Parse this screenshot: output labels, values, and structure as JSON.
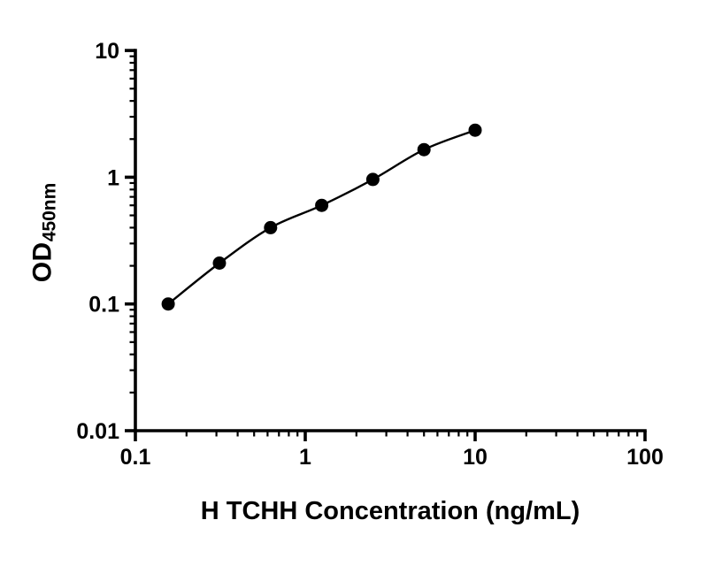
{
  "figure": {
    "background_color": "#ffffff",
    "axis_color": "#000000"
  },
  "chart_data": {
    "type": "scatter",
    "title": "",
    "xlabel": "H TCHH Concentration (ng/mL)",
    "ylabel": "OD",
    "ylabel_subscript": "450nm",
    "x": [
      0.156,
      0.3125,
      0.625,
      1.25,
      2.5,
      5,
      10
    ],
    "y": [
      0.1,
      0.21,
      0.4,
      0.6,
      0.96,
      1.65,
      2.35
    ],
    "x_scale": "log",
    "y_scale": "log",
    "xlim": [
      0.1,
      100
    ],
    "ylim": [
      0.01,
      10
    ],
    "x_ticks": [
      0.1,
      1,
      10,
      100
    ],
    "x_tick_labels": [
      "0.1",
      "1",
      "10",
      "100"
    ],
    "y_ticks": [
      0.01,
      0.1,
      1,
      10
    ],
    "y_tick_labels": [
      "0.01",
      "0.1",
      "1",
      "10"
    ],
    "grid": false,
    "legend": false,
    "marker": "circle",
    "marker_color": "#000000",
    "line_color": "#000000",
    "curve": "smooth-fit-through-points"
  }
}
